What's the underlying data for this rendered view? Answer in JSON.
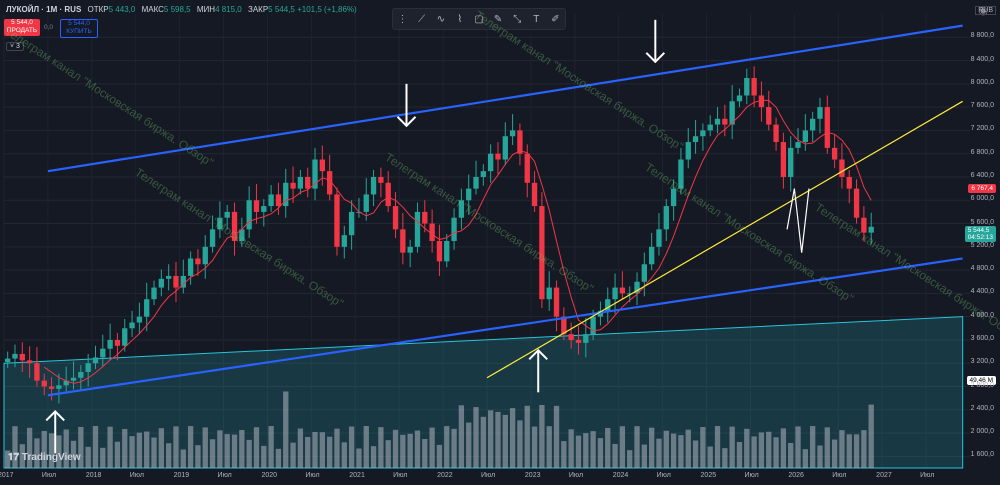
{
  "header": {
    "symbol": "ЛУКОЙЛ · 1М · RUS",
    "open_label": "ОТКР",
    "open": "5 443,0",
    "high_label": "МАКС",
    "high": "5 598,5",
    "low_label": "МИН",
    "low": "4 815,0",
    "close_label": "ЗАКР",
    "close": "5 544,5",
    "change": "+101,5 (+1,86%)"
  },
  "trade": {
    "sell_price": "5 544,0",
    "sell_label": "ПРОДАТЬ",
    "spread": "0,0",
    "buy_price": "5 544,0",
    "buy_label": "КУПИТЬ"
  },
  "indicators_count": "3",
  "toolbar": {
    "icons": [
      "lock-icon",
      "line-tool-icon",
      "path-tool-icon",
      "polyline-tool-icon",
      "rectangle-tool-icon",
      "brush-icon",
      "measure-icon",
      "text-icon",
      "pencil-icon"
    ]
  },
  "watermark": "Телеграм канал \"Московская биржа. Обзор\"",
  "logo": "TradingView",
  "currency": "RUB",
  "tags": {
    "ma_value": "6 767,4",
    "price": "5 544,5",
    "countdown": "04:52:13",
    "volume": "49,46 M"
  },
  "colors": {
    "up": "#26a69a",
    "down": "#f23645",
    "channel": "#2962ff",
    "support": "#ffeb3b",
    "ma": "#f23645",
    "teal_zone": "#26c6da"
  },
  "chart_data": {
    "type": "candlestick",
    "title": "ЛУКОЙЛ · 1М · RUS",
    "y_ticks": [
      1600,
      2000,
      2400,
      2800,
      3200,
      3600,
      4000,
      4400,
      4800,
      5200,
      5600,
      6000,
      6400,
      6800,
      7200,
      7600,
      8000,
      8400,
      8800
    ],
    "x_ticks": [
      "2017",
      "Июл",
      "2018",
      "Июл",
      "2019",
      "Июл",
      "2020",
      "Июл",
      "2021",
      "Июл",
      "2022",
      "Июл",
      "2023",
      "Июл",
      "2024",
      "Июл",
      "2025",
      "Июл",
      "2026",
      "Июл",
      "2027",
      "Июл"
    ],
    "ylim": [
      1400,
      9200
    ],
    "x_range": [
      "2017-01",
      "2027-12"
    ],
    "ohlc_monthly_close": [
      3280,
      3360,
      3250,
      3200,
      2900,
      2800,
      2760,
      2820,
      2900,
      2950,
      3050,
      3200,
      3300,
      3450,
      3600,
      3500,
      3800,
      3900,
      4000,
      4300,
      4500,
      4650,
      4700,
      4500,
      4700,
      5000,
      4900,
      5200,
      5500,
      5700,
      5800,
      5300,
      5500,
      6000,
      5800,
      5900,
      6100,
      5900,
      6300,
      6200,
      6400,
      6200,
      6700,
      6500,
      6100,
      5200,
      5400,
      5800,
      5800,
      6100,
      6400,
      6300,
      5900,
      5500,
      5100,
      5200,
      5800,
      5600,
      5300,
      4950,
      5300,
      5700,
      6000,
      6200,
      6400,
      6500,
      6800,
      6700,
      7100,
      7200,
      6800,
      6300,
      5900,
      4300,
      4500,
      4000,
      3700,
      3600,
      3550,
      3700,
      4000,
      4100,
      4300,
      4500,
      4400,
      4400,
      4600,
      4900,
      5200,
      5500,
      5900,
      6200,
      6700,
      7000,
      7100,
      7200,
      7300,
      7400,
      7300,
      7700,
      7800,
      8100,
      7800,
      7600,
      7300,
      7000,
      6400,
      6900,
      7000,
      7200,
      7400,
      7600,
      6900,
      6700,
      6400,
      6200,
      5700,
      5444,
      5544
    ],
    "ma_last": 6767.4,
    "last_price": 5544.5,
    "volume_last": "49,46 M",
    "channel_upper": {
      "start": [
        "2017-07",
        6500
      ],
      "end": [
        "2027-12",
        9000
      ]
    },
    "channel_lower": {
      "start": [
        "2017-07",
        2650
      ],
      "end": [
        "2027-12",
        5000
      ]
    },
    "support_line": {
      "start": [
        "2022-07",
        2950
      ],
      "end": [
        "2027-12",
        7700
      ]
    },
    "teal_zone": {
      "top_start": [
        "2017-01",
        3200
      ],
      "top_end": [
        "2027-12",
        4000
      ]
    },
    "projection_zigzag": [
      [
        "2025-12",
        5500
      ],
      [
        "2026-01",
        6200
      ],
      [
        "2026-02",
        5100
      ],
      [
        "2026-03",
        6200
      ]
    ],
    "arrows_down": [
      [
        "2021-08",
        8000
      ],
      [
        "2024-06",
        9100
      ]
    ],
    "arrows_up": [
      [
        "2017-08",
        1650
      ],
      [
        "2023-02",
        2700
      ]
    ]
  }
}
